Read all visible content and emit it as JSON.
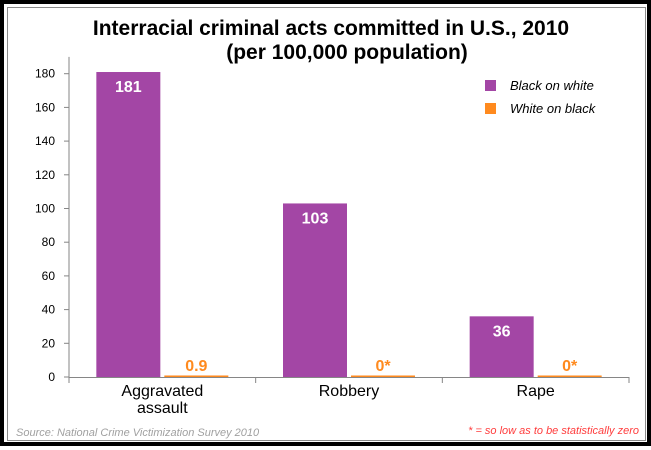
{
  "chart_data": {
    "type": "bar",
    "title_line1": "Interracial criminal acts committed in U.S., 2010",
    "title_line2": "(per 100,000 population)",
    "categories": [
      "Aggravated assault",
      "Robbery",
      "Rape"
    ],
    "category_lines": [
      [
        "Aggravated",
        "assault"
      ],
      [
        "Robbery"
      ],
      [
        "Rape"
      ]
    ],
    "series": [
      {
        "name": "Black on white",
        "color": "#a346a5",
        "values": [
          181,
          103,
          36
        ],
        "labels": [
          "181",
          "103",
          "36"
        ]
      },
      {
        "name": "White on black",
        "color": "#ff8a1e",
        "values": [
          0.9,
          0,
          0
        ],
        "labels": [
          "0.9",
          "0*",
          "0*"
        ]
      }
    ],
    "yticks": [
      0,
      20,
      40,
      60,
      80,
      100,
      120,
      140,
      160,
      180
    ],
    "ylim": [
      0,
      190
    ],
    "xlabel": "",
    "ylabel": "",
    "legend": "top-right",
    "source": "Source: National Crime Victimization Survey 2010",
    "footnote": "* = so low as to be statistically zero"
  }
}
